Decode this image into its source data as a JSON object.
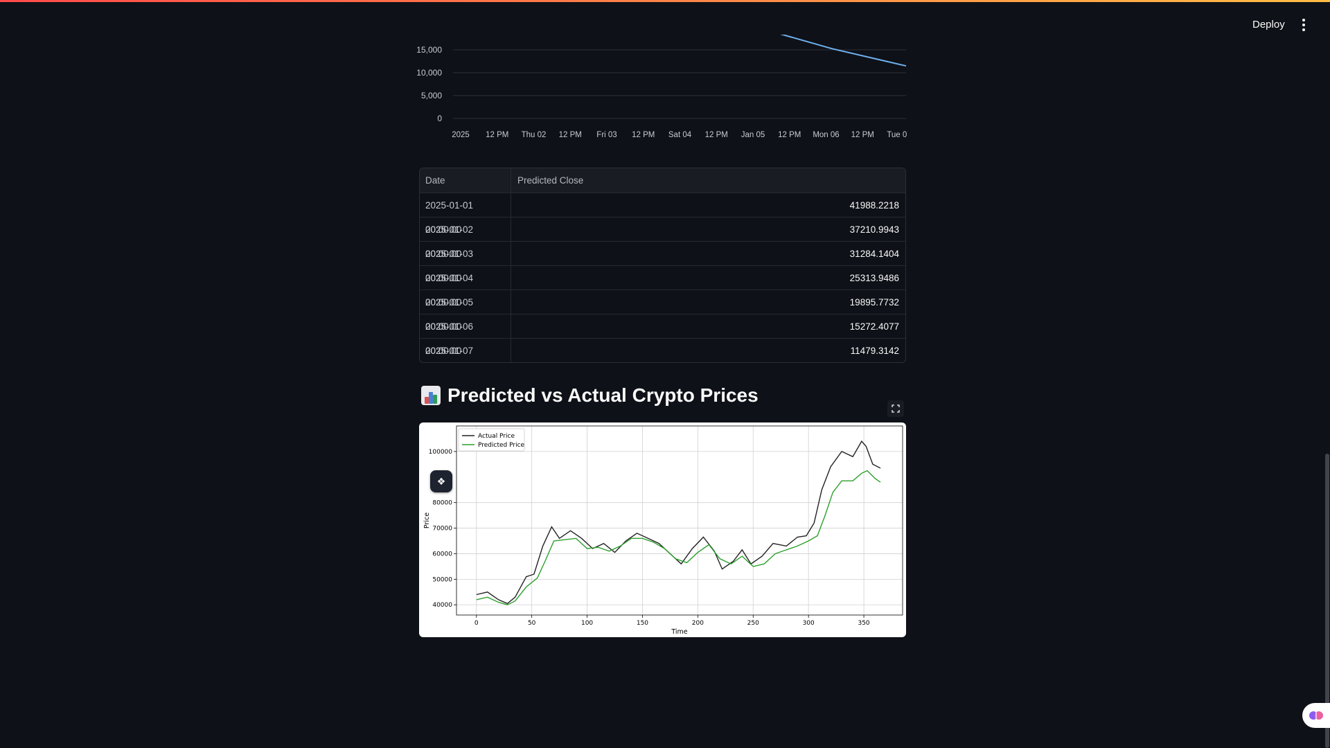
{
  "header": {
    "deploy_label": "Deploy"
  },
  "icons": {
    "menu": "kebab-menu-icon",
    "fullscreen": "fullscreen-icon",
    "title": "bar-chart-icon",
    "assistant": "brain-icon"
  },
  "colors": {
    "background": "#0e1117",
    "line_top": "#6fb1f0",
    "actual": "#222222",
    "predicted": "#2ca02c",
    "accent": "#ff4b4b"
  },
  "top_chart": {
    "y_ticks": [
      "15,000",
      "10,000",
      "5,000",
      "0"
    ],
    "x_ticks": [
      "2025",
      "12 PM",
      "Thu 02",
      "12 PM",
      "Fri 03",
      "12 PM",
      "Sat 04",
      "12 PM",
      "Jan 05",
      "12 PM",
      "Mon 06",
      "12 PM",
      "Tue 07"
    ]
  },
  "table": {
    "columns": [
      "Date",
      "Predicted Close"
    ],
    "rows": [
      [
        "2025-01-01 00:00:00",
        "41988.2218"
      ],
      [
        "2025-01-02 00:00:00",
        "37210.9943"
      ],
      [
        "2025-01-03 00:00:00",
        "31284.1404"
      ],
      [
        "2025-01-04 00:00:00",
        "25313.9486"
      ],
      [
        "2025-01-05 00:00:00",
        "19895.7732"
      ],
      [
        "2025-01-06 00:00:00",
        "15272.4077"
      ],
      [
        "2025-01-07 00:00:00",
        "11479.3142"
      ]
    ]
  },
  "section": {
    "title": "Predicted vs Actual Crypto Prices"
  },
  "chart_data": [
    {
      "type": "line",
      "x": [
        "2025-01-01",
        "2025-01-02",
        "2025-01-03",
        "2025-01-04",
        "2025-01-05",
        "2025-01-06",
        "2025-01-07"
      ],
      "series": [
        {
          "values": [
            41988.2218,
            37210.9943,
            31284.1404,
            25313.9486,
            19895.7732,
            15272.4077,
            11479.3142
          ]
        }
      ],
      "y_ticks": [
        0,
        5000,
        10000,
        15000
      ],
      "grid": true
    },
    {
      "type": "line",
      "xlabel": "Time",
      "ylabel": "Price",
      "xlim": [
        -18,
        385
      ],
      "ylim": [
        36000,
        110000
      ],
      "x_ticks": [
        0,
        50,
        100,
        150,
        200,
        250,
        300,
        350
      ],
      "y_ticks": [
        40000,
        50000,
        60000,
        70000,
        80000,
        100000
      ],
      "legend": "top-left",
      "grid": true,
      "series": [
        {
          "name": "Actual Price",
          "color": "#222222",
          "points": [
            [
              0,
              44000
            ],
            [
              10,
              45000
            ],
            [
              20,
              42000
            ],
            [
              28,
              40500
            ],
            [
              35,
              43000
            ],
            [
              45,
              51000
            ],
            [
              52,
              52000
            ],
            [
              60,
              63000
            ],
            [
              68,
              70500
            ],
            [
              75,
              66000
            ],
            [
              85,
              69000
            ],
            [
              95,
              66000
            ],
            [
              105,
              62000
            ],
            [
              115,
              64000
            ],
            [
              125,
              60500
            ],
            [
              135,
              65000
            ],
            [
              145,
              68000
            ],
            [
              155,
              66000
            ],
            [
              165,
              64000
            ],
            [
              175,
              60000
            ],
            [
              185,
              56000
            ],
            [
              195,
              62000
            ],
            [
              205,
              66500
            ],
            [
              215,
              61000
            ],
            [
              222,
              54000
            ],
            [
              232,
              57000
            ],
            [
              240,
              61500
            ],
            [
              248,
              56000
            ],
            [
              258,
              59000
            ],
            [
              268,
              64000
            ],
            [
              280,
              63000
            ],
            [
              290,
              66500
            ],
            [
              298,
              67000
            ],
            [
              305,
              72000
            ],
            [
              312,
              85000
            ],
            [
              320,
              94000
            ],
            [
              330,
              100000
            ],
            [
              340,
              98000
            ],
            [
              348,
              104000
            ],
            [
              352,
              102000
            ],
            [
              358,
              95000
            ],
            [
              365,
              93500
            ]
          ]
        },
        {
          "name": "Predicted Price",
          "color": "#2ca02c",
          "points": [
            [
              0,
              42000
            ],
            [
              10,
              43000
            ],
            [
              20,
              41000
            ],
            [
              28,
              40000
            ],
            [
              35,
              41500
            ],
            [
              45,
              47000
            ],
            [
              55,
              50500
            ],
            [
              62,
              57000
            ],
            [
              70,
              65000
            ],
            [
              80,
              65500
            ],
            [
              90,
              66000
            ],
            [
              100,
              62000
            ],
            [
              110,
              62500
            ],
            [
              120,
              61000
            ],
            [
              130,
              63000
            ],
            [
              140,
              66000
            ],
            [
              150,
              66000
            ],
            [
              160,
              64500
            ],
            [
              170,
              62000
            ],
            [
              180,
              58000
            ],
            [
              190,
              56500
            ],
            [
              200,
              60500
            ],
            [
              210,
              63500
            ],
            [
              220,
              58000
            ],
            [
              230,
              56000
            ],
            [
              240,
              59000
            ],
            [
              250,
              55000
            ],
            [
              260,
              56000
            ],
            [
              270,
              60000
            ],
            [
              280,
              61500
            ],
            [
              290,
              63000
            ],
            [
              300,
              65000
            ],
            [
              308,
              67000
            ],
            [
              315,
              75000
            ],
            [
              322,
              84000
            ],
            [
              330,
              88500
            ],
            [
              340,
              88500
            ],
            [
              348,
              91500
            ],
            [
              353,
              92500
            ],
            [
              360,
              89500
            ],
            [
              365,
              88000
            ]
          ]
        }
      ]
    }
  ]
}
